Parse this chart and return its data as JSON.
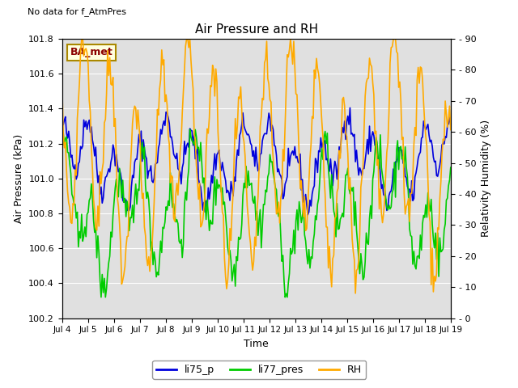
{
  "title": "Air Pressure and RH",
  "ylabel_left": "Air Pressure (kPa)",
  "ylabel_right": "Relativity Humidity (%)",
  "xlabel": "Time",
  "ylim_left": [
    100.2,
    101.8
  ],
  "ylim_right": [
    0,
    90
  ],
  "top_left_text": "No data for f_AtmPres",
  "box_label": "BA_met",
  "plot_bg_color": "#e0e0e0",
  "fig_bg_color": "#ffffff",
  "line_colors": {
    "li75_p": "#0000dd",
    "li77_pres": "#00cc00",
    "RH": "#ffaa00"
  },
  "legend_labels": [
    "li75_p",
    "li77_pres",
    "RH"
  ],
  "yticks_left": [
    100.2,
    100.4,
    100.6,
    100.8,
    101.0,
    101.2,
    101.4,
    101.6,
    101.8
  ],
  "yticks_right": [
    0,
    10,
    20,
    30,
    40,
    50,
    60,
    70,
    80,
    90
  ],
  "xtick_labels": [
    "Jul 4",
    "Jul 5",
    "Jul 6",
    "Jul 7",
    "Jul 8",
    "Jul 9",
    "Jul 10",
    "Jul 11",
    "Jul 12",
    "Jul 13",
    "Jul 14",
    "Jul 15",
    "Jul 16",
    "Jul 17",
    "Jul 18",
    "Jul 19"
  ],
  "n_days": 15,
  "seed": 42
}
